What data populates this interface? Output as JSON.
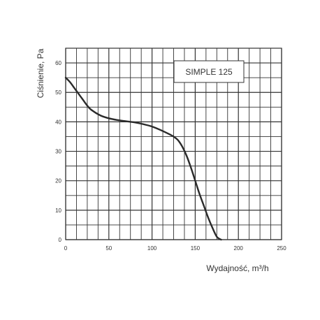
{
  "chart_data": {
    "type": "line",
    "title": "",
    "xlabel": "Wydajność, m³/h",
    "ylabel": "Ciśnienie, Pa",
    "xlim": [
      0,
      250
    ],
    "ylim": [
      0,
      65
    ],
    "x_ticks": [
      0,
      50,
      100,
      150,
      200,
      250
    ],
    "y_ticks": [
      0,
      10,
      20,
      30,
      40,
      50,
      60
    ],
    "grid": true,
    "legend_position": "top-right",
    "series": [
      {
        "name": "SIMPLE 125",
        "color": "#2a2a2a",
        "x": [
          0,
          5,
          10,
          15,
          20,
          25,
          30,
          40,
          50,
          60,
          70,
          80,
          90,
          100,
          110,
          120,
          125,
          130,
          135,
          140,
          145,
          150,
          155,
          160,
          165,
          170,
          175,
          180
        ],
        "y": [
          55,
          53.5,
          51.5,
          49.5,
          47.5,
          45.5,
          44,
          42.2,
          41.2,
          40.6,
          40.2,
          39.8,
          39.2,
          38.4,
          37.2,
          35.8,
          35,
          33.8,
          31.6,
          28.5,
          24.5,
          20,
          15.5,
          11.5,
          7.5,
          4,
          1,
          0
        ]
      }
    ]
  }
}
